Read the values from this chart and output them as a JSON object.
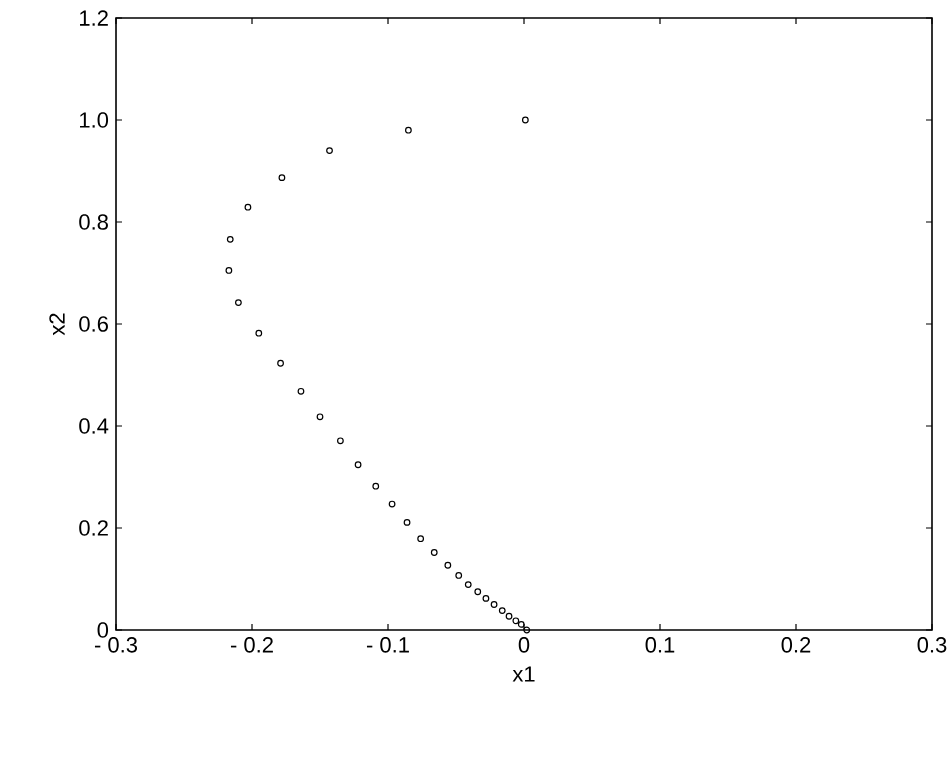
{
  "chart_data": {
    "type": "scatter",
    "xlabel": "x1",
    "ylabel": "x2",
    "xlim": [
      -0.3,
      0.3
    ],
    "ylim": [
      0,
      1.2
    ],
    "xticks": [
      {
        "value": -0.3,
        "label": "- 0.3"
      },
      {
        "value": -0.2,
        "label": "- 0.2"
      },
      {
        "value": -0.1,
        "label": "- 0.1"
      },
      {
        "value": 0,
        "label": "0"
      },
      {
        "value": 0.1,
        "label": "0.1"
      },
      {
        "value": 0.2,
        "label": "0.2"
      },
      {
        "value": 0.3,
        "label": "0.3"
      }
    ],
    "yticks": [
      {
        "value": 0,
        "label": "0"
      },
      {
        "value": 0.2,
        "label": "0.2"
      },
      {
        "value": 0.4,
        "label": "0.4"
      },
      {
        "value": 0.6,
        "label": "0.6"
      },
      {
        "value": 0.8,
        "label": "0.8"
      },
      {
        "value": 1.0,
        "label": "1.0"
      },
      {
        "value": 1.2,
        "label": "1.2"
      }
    ],
    "marker": "circle",
    "grid": false,
    "series": [
      {
        "color": "#000000",
        "x": [
          0.001,
          -0.085,
          -0.143,
          -0.178,
          -0.203,
          -0.216,
          -0.217,
          -0.21,
          -0.195,
          -0.179,
          -0.164,
          -0.15,
          -0.135,
          -0.122,
          -0.109,
          -0.097,
          -0.086,
          -0.076,
          -0.066,
          -0.056,
          -0.048,
          -0.041,
          -0.034,
          -0.028,
          -0.022,
          -0.016,
          -0.011,
          -0.006,
          -0.002,
          0.002
        ],
        "values": [
          1.0,
          0.98,
          0.94,
          0.887,
          0.829,
          0.766,
          0.705,
          0.642,
          0.582,
          0.523,
          0.468,
          0.418,
          0.371,
          0.324,
          0.282,
          0.247,
          0.211,
          0.179,
          0.152,
          0.127,
          0.107,
          0.089,
          0.075,
          0.062,
          0.05,
          0.038,
          0.027,
          0.018,
          0.011,
          0.0
        ]
      }
    ]
  }
}
